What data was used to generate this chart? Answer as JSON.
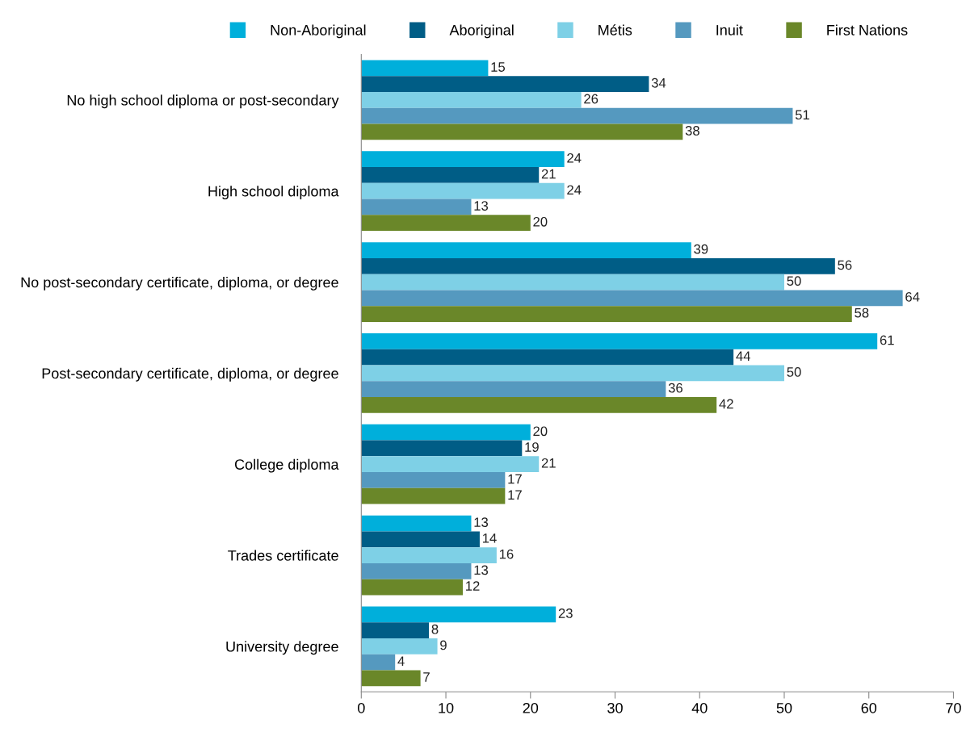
{
  "chart_data": {
    "type": "bar",
    "orientation": "horizontal",
    "categories": [
      "No high school diploma or post-secondary",
      "High school diploma",
      "No post-secondary certificate, diploma, or degree",
      "Post-secondary certificate, diploma, or degree",
      "College diploma",
      "Trades certificate",
      "University degree"
    ],
    "series": [
      {
        "name": "Non-Aboriginal",
        "color": "#00afdb",
        "values": [
          15,
          24,
          39,
          61,
          20,
          13,
          23
        ]
      },
      {
        "name": "Aboriginal",
        "color": "#005d86",
        "values": [
          34,
          21,
          56,
          44,
          19,
          14,
          8
        ]
      },
      {
        "name": "Métis",
        "color": "#7ed0e6",
        "values": [
          26,
          24,
          50,
          50,
          21,
          16,
          9
        ]
      },
      {
        "name": "Inuit",
        "color": "#5599bf",
        "values": [
          51,
          13,
          64,
          36,
          17,
          13,
          4
        ]
      },
      {
        "name": "First Nations",
        "color": "#6a8729",
        "values": [
          38,
          20,
          58,
          42,
          17,
          12,
          7
        ]
      }
    ],
    "xlim": [
      0,
      70
    ],
    "xticks": [
      0,
      10,
      20,
      30,
      40,
      50,
      60,
      70
    ],
    "data_labels": true,
    "grid": false,
    "legend": "top"
  }
}
